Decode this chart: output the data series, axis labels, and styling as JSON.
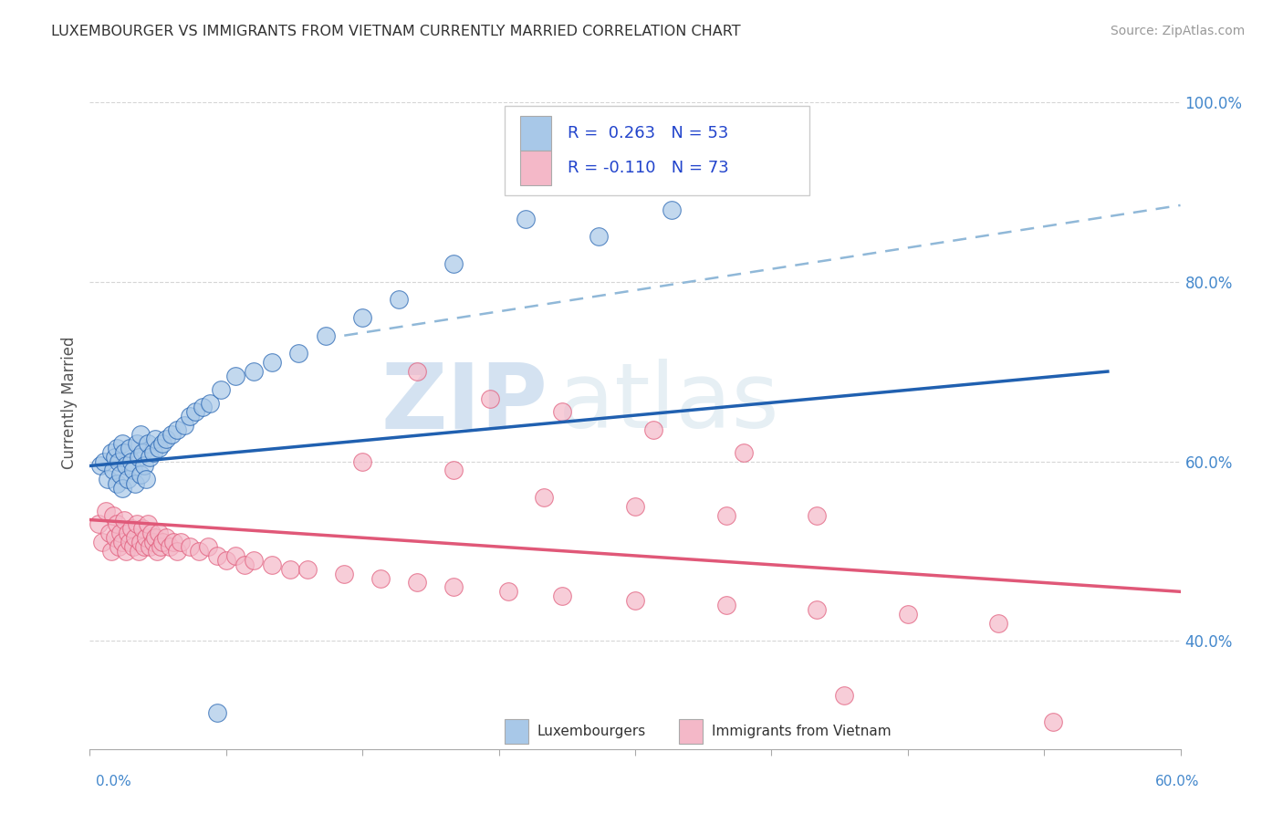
{
  "title": "LUXEMBOURGER VS IMMIGRANTS FROM VIETNAM CURRENTLY MARRIED CORRELATION CHART",
  "source": "Source: ZipAtlas.com",
  "ylabel": "Currently Married",
  "y_ticks": [
    0.4,
    0.6,
    0.8,
    1.0
  ],
  "y_tick_labels": [
    "40.0%",
    "60.0%",
    "80.0%",
    "100.0%"
  ],
  "xlim": [
    0.0,
    0.6
  ],
  "ylim": [
    0.28,
    1.05
  ],
  "legend_r1": "R =  0.263   N = 53",
  "legend_r2": "R = -0.110   N = 73",
  "color_blue": "#a8c8e8",
  "color_pink": "#f4b8c8",
  "color_trendline_blue": "#2060b0",
  "color_trendline_pink": "#e05878",
  "color_trendline_dash": "#90b8d8",
  "watermark_zip": "ZIP",
  "watermark_atlas": "atlas",
  "blue_x": [
    0.006,
    0.008,
    0.01,
    0.012,
    0.013,
    0.014,
    0.015,
    0.015,
    0.016,
    0.017,
    0.018,
    0.018,
    0.019,
    0.02,
    0.021,
    0.022,
    0.023,
    0.024,
    0.025,
    0.026,
    0.027,
    0.028,
    0.028,
    0.029,
    0.03,
    0.031,
    0.032,
    0.033,
    0.035,
    0.036,
    0.038,
    0.04,
    0.042,
    0.045,
    0.048,
    0.052,
    0.055,
    0.058,
    0.062,
    0.066,
    0.072,
    0.08,
    0.09,
    0.1,
    0.115,
    0.13,
    0.15,
    0.17,
    0.2,
    0.24,
    0.28,
    0.32,
    0.07
  ],
  "blue_y": [
    0.595,
    0.6,
    0.58,
    0.61,
    0.59,
    0.605,
    0.575,
    0.615,
    0.6,
    0.585,
    0.62,
    0.57,
    0.61,
    0.595,
    0.58,
    0.615,
    0.6,
    0.59,
    0.575,
    0.62,
    0.605,
    0.585,
    0.63,
    0.61,
    0.595,
    0.58,
    0.62,
    0.605,
    0.61,
    0.625,
    0.615,
    0.62,
    0.625,
    0.63,
    0.635,
    0.64,
    0.65,
    0.655,
    0.66,
    0.665,
    0.68,
    0.695,
    0.7,
    0.71,
    0.72,
    0.74,
    0.76,
    0.78,
    0.82,
    0.87,
    0.85,
    0.88,
    0.32
  ],
  "pink_x": [
    0.005,
    0.007,
    0.009,
    0.011,
    0.012,
    0.013,
    0.014,
    0.015,
    0.016,
    0.017,
    0.018,
    0.019,
    0.02,
    0.021,
    0.022,
    0.023,
    0.024,
    0.025,
    0.026,
    0.027,
    0.028,
    0.029,
    0.03,
    0.031,
    0.032,
    0.033,
    0.034,
    0.035,
    0.036,
    0.037,
    0.038,
    0.039,
    0.04,
    0.042,
    0.044,
    0.046,
    0.048,
    0.05,
    0.055,
    0.06,
    0.065,
    0.07,
    0.075,
    0.08,
    0.085,
    0.09,
    0.1,
    0.11,
    0.12,
    0.14,
    0.16,
    0.18,
    0.2,
    0.23,
    0.26,
    0.3,
    0.35,
    0.4,
    0.45,
    0.5,
    0.15,
    0.2,
    0.25,
    0.3,
    0.35,
    0.4,
    0.18,
    0.22,
    0.26,
    0.31,
    0.36,
    0.415,
    0.53
  ],
  "pink_y": [
    0.53,
    0.51,
    0.545,
    0.52,
    0.5,
    0.54,
    0.515,
    0.53,
    0.505,
    0.52,
    0.51,
    0.535,
    0.5,
    0.52,
    0.51,
    0.525,
    0.505,
    0.515,
    0.53,
    0.5,
    0.51,
    0.525,
    0.505,
    0.515,
    0.53,
    0.505,
    0.52,
    0.51,
    0.515,
    0.5,
    0.52,
    0.505,
    0.51,
    0.515,
    0.505,
    0.51,
    0.5,
    0.51,
    0.505,
    0.5,
    0.505,
    0.495,
    0.49,
    0.495,
    0.485,
    0.49,
    0.485,
    0.48,
    0.48,
    0.475,
    0.47,
    0.465,
    0.46,
    0.455,
    0.45,
    0.445,
    0.44,
    0.435,
    0.43,
    0.42,
    0.6,
    0.59,
    0.56,
    0.55,
    0.54,
    0.54,
    0.7,
    0.67,
    0.655,
    0.635,
    0.61,
    0.34,
    0.31
  ]
}
